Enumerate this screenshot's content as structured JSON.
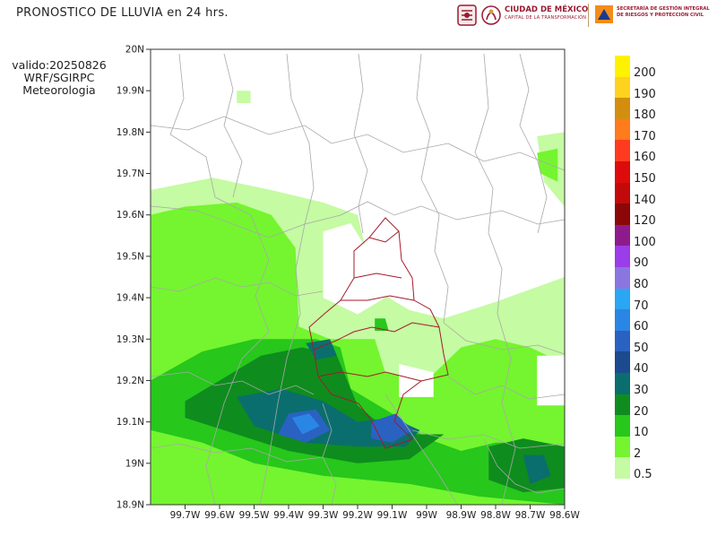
{
  "header": {
    "title": "PRONOSTICO DE LLUVIA en 24 hrs.",
    "validity": "valido:20250826",
    "model": "WRF/SGIRPC",
    "unit": "Meteorologia",
    "cdmx_logo_name": "CIUDAD DE MÉXICO",
    "cdmx_logo_tagline": "CAPITAL DE LA TRANSFORMACIÓN",
    "agency_line1": "SECRETARÍA DE GESTIÓN INTEGRAL",
    "agency_line2": "DE RIESGOS Y PROTECCIÓN CIVIL"
  },
  "map": {
    "lon_range": [
      -99.8,
      -98.6
    ],
    "lat_range": [
      18.9,
      20.0
    ],
    "x_ticks": [
      {
        "lon": -99.7,
        "label": "99.7W"
      },
      {
        "lon": -99.6,
        "label": "99.6W"
      },
      {
        "lon": -99.5,
        "label": "99.5W"
      },
      {
        "lon": -99.4,
        "label": "99.4W"
      },
      {
        "lon": -99.3,
        "label": "99.3W"
      },
      {
        "lon": -99.2,
        "label": "99.2W"
      },
      {
        "lon": -99.1,
        "label": "99.1W"
      },
      {
        "lon": -99.0,
        "label": "99W"
      },
      {
        "lon": -98.9,
        "label": "98.9W"
      },
      {
        "lon": -98.8,
        "label": "98.8W"
      },
      {
        "lon": -98.7,
        "label": "98.7W"
      },
      {
        "lon": -98.6,
        "label": "98.6W"
      }
    ],
    "y_ticks": [
      {
        "lat": 20.0,
        "label": "20N"
      },
      {
        "lat": 19.9,
        "label": "19.9N"
      },
      {
        "lat": 19.8,
        "label": "19.8N"
      },
      {
        "lat": 19.7,
        "label": "19.7N"
      },
      {
        "lat": 19.6,
        "label": "19.6N"
      },
      {
        "lat": 19.5,
        "label": "19.5N"
      },
      {
        "lat": 19.4,
        "label": "19.4N"
      },
      {
        "lat": 19.3,
        "label": "19.3N"
      },
      {
        "lat": 19.2,
        "label": "19.2N"
      },
      {
        "lat": 19.1,
        "label": "19.1N"
      },
      {
        "lat": 19.0,
        "label": "19N"
      },
      {
        "lat": 18.9,
        "label": "18.9N"
      }
    ],
    "rain_areas": [
      {
        "level": 2,
        "pts": [
          [
            -99.8,
            19.66
          ],
          [
            -99.62,
            19.69
          ],
          [
            -99.45,
            19.66
          ],
          [
            -99.3,
            19.63
          ],
          [
            -99.2,
            19.6
          ],
          [
            -99.15,
            19.42
          ],
          [
            -99.05,
            19.37
          ],
          [
            -98.95,
            19.35
          ],
          [
            -98.8,
            19.39
          ],
          [
            -98.7,
            19.42
          ],
          [
            -98.6,
            19.45
          ],
          [
            -98.6,
            18.9
          ],
          [
            -99.8,
            18.9
          ]
        ]
      },
      {
        "level": 2,
        "pts": [
          [
            -98.68,
            19.79
          ],
          [
            -98.6,
            19.8
          ],
          [
            -98.6,
            19.62
          ],
          [
            -98.66,
            19.68
          ]
        ]
      },
      {
        "level": 10,
        "pts": [
          [
            -99.8,
            19.6
          ],
          [
            -99.7,
            19.62
          ],
          [
            -99.55,
            19.63
          ],
          [
            -99.45,
            19.6
          ],
          [
            -99.38,
            19.52
          ],
          [
            -99.37,
            19.33
          ],
          [
            -99.28,
            19.3
          ],
          [
            -99.15,
            19.3
          ],
          [
            -99.12,
            19.22
          ],
          [
            -99.0,
            19.2
          ],
          [
            -98.9,
            19.28
          ],
          [
            -98.8,
            19.3
          ],
          [
            -98.7,
            19.28
          ],
          [
            -98.6,
            19.24
          ],
          [
            -98.6,
            18.9
          ],
          [
            -99.8,
            18.9
          ]
        ]
      },
      {
        "level": 20,
        "pts": [
          [
            -99.8,
            19.2
          ],
          [
            -99.65,
            19.27
          ],
          [
            -99.5,
            19.3
          ],
          [
            -99.4,
            19.3
          ],
          [
            -99.32,
            19.3
          ],
          [
            -99.25,
            19.28
          ],
          [
            -99.22,
            19.18
          ],
          [
            -99.1,
            19.12
          ],
          [
            -99.0,
            19.06
          ],
          [
            -98.9,
            19.03
          ],
          [
            -98.8,
            19.05
          ],
          [
            -98.7,
            19.05
          ],
          [
            -98.6,
            19.04
          ],
          [
            -98.6,
            18.9
          ],
          [
            -98.85,
            18.92
          ],
          [
            -99.05,
            18.95
          ],
          [
            -99.3,
            18.97
          ],
          [
            -99.5,
            19.0
          ],
          [
            -99.65,
            19.05
          ],
          [
            -99.8,
            19.08
          ]
        ]
      },
      {
        "level": 30,
        "pts": [
          [
            -99.7,
            19.15
          ],
          [
            -99.6,
            19.2
          ],
          [
            -99.48,
            19.26
          ],
          [
            -99.36,
            19.28
          ],
          [
            -99.26,
            19.26
          ],
          [
            -99.2,
            19.14
          ],
          [
            -99.1,
            19.07
          ],
          [
            -98.95,
            19.07
          ],
          [
            -99.05,
            19.01
          ],
          [
            -99.2,
            19.0
          ],
          [
            -99.4,
            19.03
          ],
          [
            -99.55,
            19.07
          ],
          [
            -99.7,
            19.11
          ]
        ]
      },
      {
        "level": 40,
        "pts": [
          [
            -99.55,
            19.16
          ],
          [
            -99.42,
            19.18
          ],
          [
            -99.3,
            19.15
          ],
          [
            -99.2,
            19.1
          ],
          [
            -99.1,
            19.11
          ],
          [
            -99.02,
            19.08
          ],
          [
            -99.06,
            19.04
          ],
          [
            -99.2,
            19.04
          ],
          [
            -99.35,
            19.05
          ],
          [
            -99.5,
            19.09
          ]
        ]
      },
      {
        "level": 50,
        "pts": [
          [
            -99.4,
            19.12
          ],
          [
            -99.32,
            19.13
          ],
          [
            -99.28,
            19.08
          ],
          [
            -99.35,
            19.05
          ],
          [
            -99.43,
            19.07
          ]
        ]
      },
      {
        "level": 50,
        "pts": [
          [
            -99.16,
            19.1
          ],
          [
            -99.09,
            19.12
          ],
          [
            -99.04,
            19.08
          ],
          [
            -99.1,
            19.05
          ],
          [
            -99.16,
            19.06
          ]
        ]
      },
      {
        "level": 60,
        "pts": [
          [
            -99.39,
            19.11
          ],
          [
            -99.34,
            19.12
          ],
          [
            -99.31,
            19.09
          ],
          [
            -99.36,
            19.07
          ]
        ]
      },
      {
        "level": 30,
        "pts": [
          [
            -98.82,
            19.04
          ],
          [
            -98.72,
            19.06
          ],
          [
            -98.6,
            19.04
          ],
          [
            -98.6,
            18.94
          ],
          [
            -98.72,
            18.93
          ],
          [
            -98.82,
            18.96
          ]
        ]
      },
      {
        "level": 40,
        "pts": [
          [
            -98.72,
            19.02
          ],
          [
            -98.66,
            19.02
          ],
          [
            -98.64,
            18.97
          ],
          [
            -98.7,
            18.95
          ]
        ]
      },
      {
        "level": 40,
        "pts": [
          [
            -99.35,
            19.29
          ],
          [
            -99.28,
            19.3
          ],
          [
            -99.26,
            19.26
          ],
          [
            -99.32,
            19.25
          ]
        ]
      },
      {
        "level": 20,
        "pts": [
          [
            -99.15,
            19.35
          ],
          [
            -99.12,
            19.35
          ],
          [
            -99.11,
            19.32
          ],
          [
            -99.15,
            19.32
          ]
        ]
      },
      {
        "level": 10,
        "pts": [
          [
            -98.68,
            19.75
          ],
          [
            -98.62,
            19.76
          ],
          [
            -98.62,
            19.68
          ],
          [
            -98.67,
            19.7
          ]
        ]
      },
      {
        "level": 2,
        "pts": [
          [
            -99.55,
            19.9
          ],
          [
            -99.51,
            19.9
          ],
          [
            -99.51,
            19.87
          ],
          [
            -99.55,
            19.87
          ]
        ]
      }
    ],
    "dry_areas": [
      {
        "pts": [
          [
            -99.3,
            19.56
          ],
          [
            -99.22,
            19.58
          ],
          [
            -99.16,
            19.5
          ],
          [
            -99.12,
            19.4
          ],
          [
            -99.2,
            19.36
          ],
          [
            -99.3,
            19.4
          ]
        ]
      },
      {
        "pts": [
          [
            -99.08,
            19.24
          ],
          [
            -98.98,
            19.22
          ],
          [
            -98.98,
            19.16
          ],
          [
            -99.08,
            19.16
          ]
        ]
      },
      {
        "pts": [
          [
            -98.68,
            19.26
          ],
          [
            -98.6,
            19.26
          ],
          [
            -98.6,
            19.14
          ],
          [
            -98.68,
            19.14
          ]
        ]
      }
    ]
  },
  "legend": {
    "levels": [
      {
        "label": "200",
        "color": "#fff200"
      },
      {
        "label": "190",
        "color": "#ffd21e"
      },
      {
        "label": "180",
        "color": "#d48e0f"
      },
      {
        "label": "170",
        "color": "#ff7b1c"
      },
      {
        "label": "160",
        "color": "#ff3b1f"
      },
      {
        "label": "150",
        "color": "#dd0b0b"
      },
      {
        "label": "140",
        "color": "#c20a0a"
      },
      {
        "label": "120",
        "color": "#8c0707"
      },
      {
        "label": "100",
        "color": "#8e1b8c"
      },
      {
        "label": "90",
        "color": "#9b3de8"
      },
      {
        "label": "80",
        "color": "#8a76df"
      },
      {
        "label": "70",
        "color": "#2aa6f2"
      },
      {
        "label": "60",
        "color": "#2a86e4"
      },
      {
        "label": "50",
        "color": "#2a62c2"
      },
      {
        "label": "40",
        "color": "#1c4a8f"
      },
      {
        "label": "30",
        "color": "#0a6e6e"
      },
      {
        "label": "20",
        "color": "#0f8c1e"
      },
      {
        "label": "10",
        "color": "#27c71c"
      },
      {
        "label": "2",
        "color": "#74f52f"
      },
      {
        "label": "0.5",
        "color": "#c5fba3"
      }
    ],
    "fill_colors": {
      "2": "#c5fba3",
      "10": "#74f52f",
      "20": "#27c71c",
      "30": "#0f8c1e",
      "40": "#0a6e6e",
      "50": "#2a62c2",
      "60": "#2a86e4"
    }
  }
}
